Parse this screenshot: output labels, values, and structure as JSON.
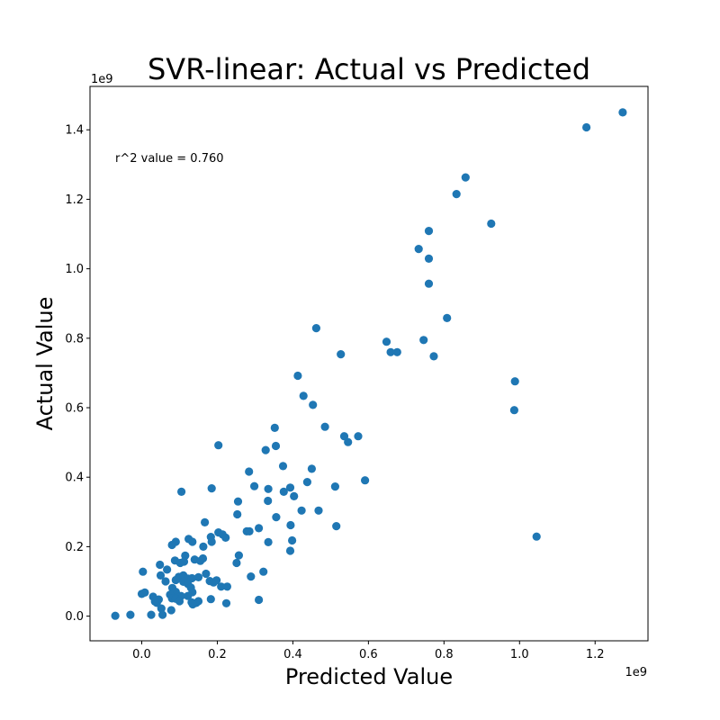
{
  "chart_data": {
    "type": "scatter",
    "title": "SVR-linear: Actual vs Predicted",
    "xlabel": "Predicted Value",
    "ylabel": "Actual Value",
    "x_offset_label": "1e9",
    "y_offset_label": "1e9",
    "annotation": "r^2 value = 0.760",
    "xlim": [
      -0.137,
      1.34
    ],
    "ylim": [
      -0.071,
      1.525
    ],
    "x_ticks": [
      0.0,
      0.2,
      0.4,
      0.6,
      0.8,
      1.0,
      1.2
    ],
    "x_tick_labels": [
      "0.0",
      "0.2",
      "0.4",
      "0.6",
      "0.8",
      "1.0",
      "1.2"
    ],
    "y_ticks": [
      0.0,
      0.2,
      0.4,
      0.6,
      0.8,
      1.0,
      1.2,
      1.4
    ],
    "y_tick_labels": [
      "0.0",
      "0.2",
      "0.4",
      "0.6",
      "0.8",
      "1.0",
      "1.2",
      "1.4"
    ],
    "grid": false,
    "point_color": "#1f77b4",
    "points": [
      [
        1.273,
        1.45
      ],
      [
        1.177,
        1.407
      ],
      [
        0.857,
        1.263
      ],
      [
        0.833,
        1.215
      ],
      [
        0.925,
        1.13
      ],
      [
        0.76,
        1.109
      ],
      [
        0.733,
        1.057
      ],
      [
        0.76,
        1.029
      ],
      [
        0.76,
        0.957
      ],
      [
        0.808,
        0.858
      ],
      [
        0.462,
        0.829
      ],
      [
        0.648,
        0.79
      ],
      [
        0.746,
        0.795
      ],
      [
        0.659,
        0.76
      ],
      [
        0.676,
        0.76
      ],
      [
        0.773,
        0.748
      ],
      [
        0.527,
        0.754
      ],
      [
        0.988,
        0.676
      ],
      [
        0.986,
        0.593
      ],
      [
        1.045,
        0.229
      ],
      [
        0.413,
        0.692
      ],
      [
        0.428,
        0.634
      ],
      [
        0.453,
        0.608
      ],
      [
        0.485,
        0.545
      ],
      [
        0.352,
        0.542
      ],
      [
        0.536,
        0.518
      ],
      [
        0.546,
        0.501
      ],
      [
        0.573,
        0.518
      ],
      [
        0.591,
        0.391
      ],
      [
        0.203,
        0.492
      ],
      [
        0.328,
        0.478
      ],
      [
        0.355,
        0.49
      ],
      [
        0.374,
        0.432
      ],
      [
        0.45,
        0.424
      ],
      [
        0.284,
        0.416
      ],
      [
        0.438,
        0.386
      ],
      [
        0.512,
        0.373
      ],
      [
        0.298,
        0.374
      ],
      [
        0.335,
        0.366
      ],
      [
        0.376,
        0.358
      ],
      [
        0.393,
        0.37
      ],
      [
        0.403,
        0.345
      ],
      [
        0.334,
        0.332
      ],
      [
        0.185,
        0.368
      ],
      [
        0.105,
        0.358
      ],
      [
        0.255,
        0.33
      ],
      [
        0.423,
        0.304
      ],
      [
        0.468,
        0.304
      ],
      [
        0.253,
        0.293
      ],
      [
        0.356,
        0.285
      ],
      [
        0.394,
        0.262
      ],
      [
        0.515,
        0.259
      ],
      [
        0.31,
        0.253
      ],
      [
        0.167,
        0.27
      ],
      [
        0.278,
        0.244
      ],
      [
        0.285,
        0.244
      ],
      [
        0.203,
        0.241
      ],
      [
        0.214,
        0.235
      ],
      [
        0.222,
        0.226
      ],
      [
        0.183,
        0.228
      ],
      [
        0.185,
        0.214
      ],
      [
        0.124,
        0.222
      ],
      [
        0.134,
        0.214
      ],
      [
        0.398,
        0.218
      ],
      [
        0.335,
        0.213
      ],
      [
        0.09,
        0.214
      ],
      [
        0.08,
        0.205
      ],
      [
        0.163,
        0.2
      ],
      [
        0.393,
        0.188
      ],
      [
        0.257,
        0.175
      ],
      [
        0.115,
        0.174
      ],
      [
        0.14,
        0.163
      ],
      [
        0.155,
        0.159
      ],
      [
        0.162,
        0.166
      ],
      [
        0.251,
        0.153
      ],
      [
        0.088,
        0.16
      ],
      [
        0.102,
        0.153
      ],
      [
        0.112,
        0.157
      ],
      [
        0.048,
        0.148
      ],
      [
        0.003,
        0.128
      ],
      [
        0.067,
        0.134
      ],
      [
        0.322,
        0.128
      ],
      [
        0.17,
        0.122
      ],
      [
        0.289,
        0.114
      ],
      [
        0.05,
        0.117
      ],
      [
        0.098,
        0.113
      ],
      [
        0.11,
        0.117
      ],
      [
        0.122,
        0.108
      ],
      [
        0.133,
        0.109
      ],
      [
        0.15,
        0.112
      ],
      [
        0.09,
        0.104
      ],
      [
        0.11,
        0.099
      ],
      [
        0.18,
        0.101
      ],
      [
        0.19,
        0.097
      ],
      [
        0.198,
        0.103
      ],
      [
        0.063,
        0.1
      ],
      [
        0.122,
        0.093
      ],
      [
        0.21,
        0.085
      ],
      [
        0.226,
        0.085
      ],
      [
        0.081,
        0.081
      ],
      [
        0.13,
        0.082
      ],
      [
        0.134,
        0.069
      ],
      [
        0.09,
        0.07
      ],
      [
        0.0,
        0.064
      ],
      [
        0.008,
        0.068
      ],
      [
        0.03,
        0.056
      ],
      [
        0.075,
        0.062
      ],
      [
        0.104,
        0.058
      ],
      [
        0.122,
        0.058
      ],
      [
        0.08,
        0.051
      ],
      [
        0.09,
        0.05
      ],
      [
        0.045,
        0.048
      ],
      [
        0.1,
        0.043
      ],
      [
        0.183,
        0.049
      ],
      [
        0.31,
        0.047
      ],
      [
        0.132,
        0.04
      ],
      [
        0.144,
        0.038
      ],
      [
        0.15,
        0.043
      ],
      [
        0.224,
        0.037
      ],
      [
        0.04,
        0.038
      ],
      [
        0.035,
        0.042
      ],
      [
        0.135,
        0.034
      ],
      [
        0.052,
        0.022
      ],
      [
        0.078,
        0.017
      ],
      [
        0.055,
        0.004
      ],
      [
        0.025,
        0.004
      ],
      [
        -0.07,
        0.001
      ],
      [
        -0.03,
        0.004
      ]
    ]
  }
}
